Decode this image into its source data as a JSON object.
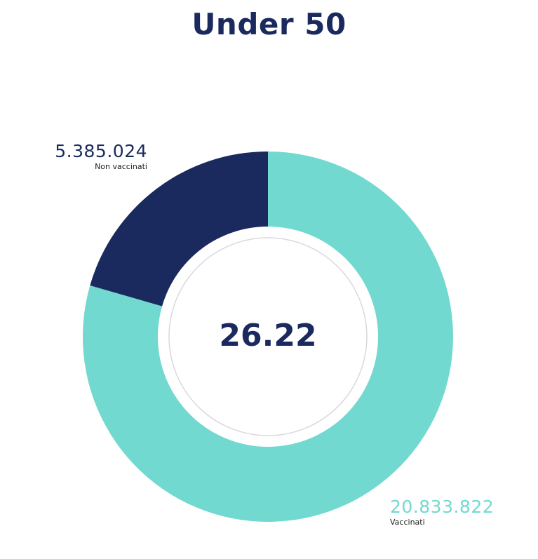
{
  "chart_data": {
    "type": "pie",
    "title": "Under 50",
    "center_label": "26.22",
    "slices": [
      {
        "label": "Vaccinati",
        "value_label": "20.833.822",
        "value": 20833822,
        "color": "#72d9d0"
      },
      {
        "label": "Non vaccinati",
        "value_label": "5.385.024",
        "value": 5385024,
        "color": "#1b2a5e"
      }
    ],
    "style": "donut"
  }
}
